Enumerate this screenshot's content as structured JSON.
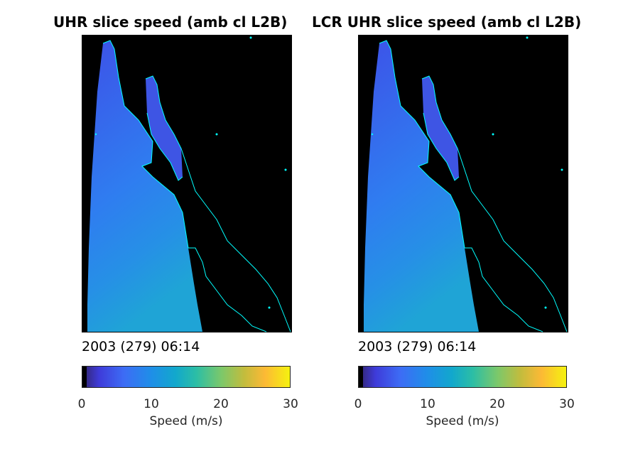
{
  "panels": [
    {
      "title": "UHR slice speed (amb cl L2B)",
      "date": "2003 (279) 06:14",
      "colorbar": {
        "ticks": [
          "0",
          "10",
          "20",
          "30"
        ],
        "label": "Speed (m/s)",
        "range": [
          0,
          30
        ]
      }
    },
    {
      "title": "LCR UHR slice speed (amb cl L2B)",
      "date": "2003 (279) 06:14",
      "colorbar": {
        "ticks": [
          "0",
          "10",
          "20",
          "30"
        ],
        "label": "Speed (m/s)",
        "range": [
          0,
          30
        ]
      }
    }
  ],
  "colors": {
    "coastline": "#00ffff",
    "land_nodata": "#000000",
    "colormap": "parula"
  }
}
